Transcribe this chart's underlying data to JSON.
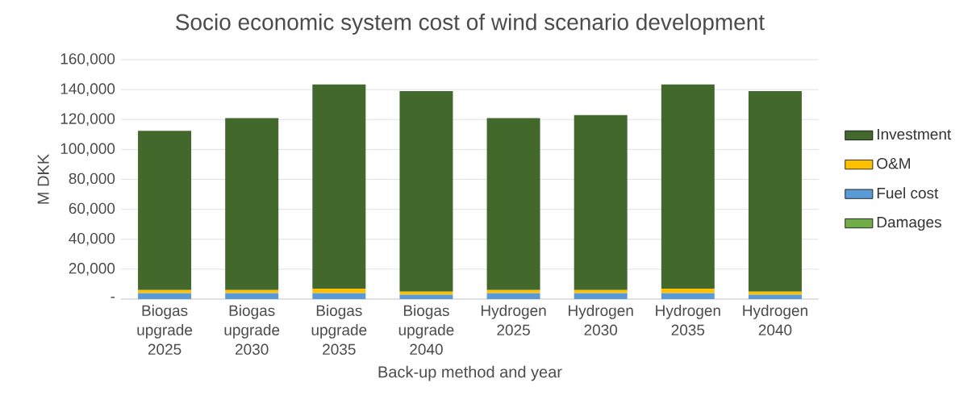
{
  "chart_data": {
    "type": "bar",
    "stacked": true,
    "title": "Socio economic system cost of wind scenario development",
    "xlabel": "Back-up method and year",
    "ylabel": "M DKK",
    "categories": [
      "Biogas upgrade 2025",
      "Biogas upgrade 2030",
      "Biogas upgrade 2035",
      "Biogas upgrade 2040",
      "Hydrogen 2025",
      "Hydrogen 2030",
      "Hydrogen 2035",
      "Hydrogen 2040"
    ],
    "series": [
      {
        "name": "Damages",
        "color": "#70ad47",
        "values": [
          0,
          0,
          0,
          0,
          0,
          0,
          0,
          0
        ]
      },
      {
        "name": "Fuel cost",
        "color": "#5b9bd5",
        "values": [
          4000,
          4000,
          4000,
          3000,
          4000,
          4000,
          4000,
          3000
        ]
      },
      {
        "name": "O&M",
        "color": "#ffc000",
        "values": [
          2000,
          2000,
          3000,
          2000,
          2000,
          2000,
          3000,
          2000
        ]
      },
      {
        "name": "Investment",
        "color": "#43682b",
        "values": [
          106500,
          115000,
          136500,
          134000,
          115000,
          117000,
          136500,
          134000
        ]
      }
    ],
    "ylim": [
      0,
      160000
    ],
    "yticks": [
      {
        "value": 0,
        "label": "-"
      },
      {
        "value": 20000,
        "label": "20,000"
      },
      {
        "value": 40000,
        "label": "40,000"
      },
      {
        "value": 60000,
        "label": "60,000"
      },
      {
        "value": 80000,
        "label": "80,000"
      },
      {
        "value": 100000,
        "label": "100,000"
      },
      {
        "value": 120000,
        "label": "120,000"
      },
      {
        "value": 140000,
        "label": "140,000"
      },
      {
        "value": 160000,
        "label": "160,000"
      }
    ],
    "grid": "y",
    "legend": "right"
  }
}
